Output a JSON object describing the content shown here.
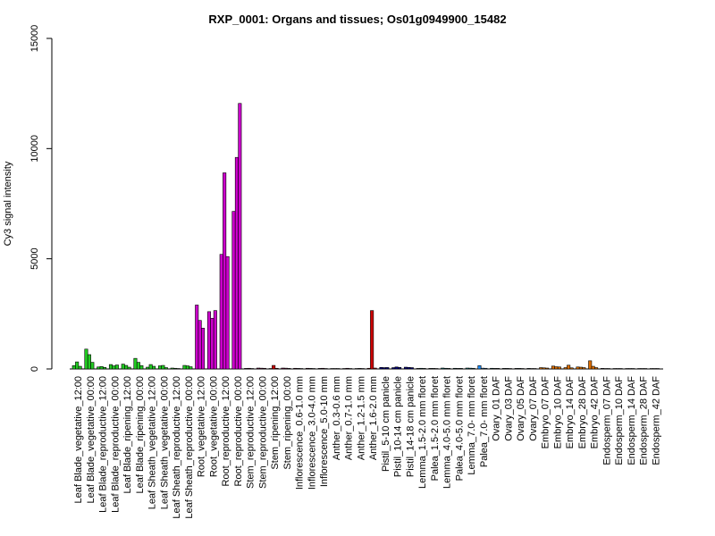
{
  "chart_data": {
    "type": "bar",
    "title": "RXP_0001: Organs and tissues; Os01g0949900_15482",
    "xlabel": "",
    "ylabel": "Cy3 signal intensity",
    "ylim": [
      0,
      15000
    ],
    "yticks": [
      0,
      5000,
      10000,
      15000
    ],
    "grid": false,
    "bar_border_color": "#000000",
    "groups": [
      {
        "label": "Leaf Blade_vegetative_12:00",
        "color": "#22cc22",
        "values": [
          150,
          320,
          120
        ]
      },
      {
        "label": "Leaf Blade_vegetative_00:00",
        "color": "#22cc22",
        "values": [
          900,
          650,
          300
        ]
      },
      {
        "label": "Leaf Blade_reproductive_12:00",
        "color": "#22cc22",
        "values": [
          90,
          110,
          70
        ]
      },
      {
        "label": "Leaf Blade_reproductive_00:00",
        "color": "#22cc22",
        "values": [
          200,
          140,
          180
        ]
      },
      {
        "label": "Leaf Blade_ripening_12:00",
        "color": "#22cc22",
        "values": [
          220,
          160,
          80
        ]
      },
      {
        "label": "Leaf Blade_ripening_00:00",
        "color": "#22cc22",
        "values": [
          480,
          300,
          150
        ]
      },
      {
        "label": "Leaf Sheath_vegetative_12:00",
        "color": "#22cc22",
        "values": [
          80,
          200,
          120
        ]
      },
      {
        "label": "Leaf Sheath_vegetative_00:00",
        "color": "#22cc22",
        "values": [
          140,
          160,
          60
        ]
      },
      {
        "label": "Leaf Sheath_reproductive_12:00",
        "color": "#22cc22",
        "values": [
          40,
          30,
          20
        ]
      },
      {
        "label": "Leaf Sheath_reproductive_00:00",
        "color": "#22cc22",
        "values": [
          160,
          140,
          100
        ]
      },
      {
        "label": "Root_vegetative_12:00",
        "color": "#cc00cc",
        "values": [
          2900,
          2200,
          1850
        ]
      },
      {
        "label": "Root_vegetative_00:00",
        "color": "#cc00cc",
        "values": [
          2600,
          2300,
          2650
        ]
      },
      {
        "label": "Root_reproductive_12:00",
        "color": "#cc00cc",
        "values": [
          5200,
          8900,
          5100
        ]
      },
      {
        "label": "Root_reproductive_00:00",
        "color": "#cc00cc",
        "values": [
          7150,
          9600,
          12050
        ]
      },
      {
        "label": "Stem_reproductive_12:00",
        "color": "#800040",
        "values": [
          25,
          30,
          20
        ]
      },
      {
        "label": "Stem_reproductive_00:00",
        "color": "#800040",
        "values": [
          40,
          35,
          30
        ]
      },
      {
        "label": "Stem_ripening_12:00",
        "color": "#cc0000",
        "values": [
          20,
          160,
          30
        ]
      },
      {
        "label": "Stem_ripening_00:00",
        "color": "#800040",
        "values": [
          40,
          35,
          25
        ]
      },
      {
        "label": "Inflorescence_0.6-1.0 mm",
        "color": "#800040",
        "values": [
          30,
          25,
          20
        ]
      },
      {
        "label": "Inflorescence_3.0-4.0 mm",
        "color": "#800040",
        "values": [
          30,
          25,
          20
        ]
      },
      {
        "label": "Inflorescence_5.0-10 mm",
        "color": "#800040",
        "values": [
          25,
          30,
          20
        ]
      },
      {
        "label": "Anther_0.3-0.6 mm",
        "color": "#800040",
        "values": [
          20,
          20,
          20
        ]
      },
      {
        "label": "Anther_0.7-1.0 mm",
        "color": "#800040",
        "values": [
          20,
          30,
          20
        ]
      },
      {
        "label": "Anther_1.2-1.5 mm",
        "color": "#800040",
        "values": [
          20,
          25,
          20
        ]
      },
      {
        "label": "Anther_1.6-2.0 mm",
        "color": "#cc0000",
        "values": [
          30,
          2650,
          40
        ]
      },
      {
        "label": "Pistil_5-10 cm panicle",
        "color": "#000080",
        "values": [
          70,
          60,
          65
        ]
      },
      {
        "label": "Pistil_10-14 cm panicle",
        "color": "#000080",
        "values": [
          60,
          90,
          70
        ]
      },
      {
        "label": "Pistil_14-18 cm panicle",
        "color": "#000080",
        "values": [
          80,
          70,
          60
        ]
      },
      {
        "label": "Lemma_1.5-2.0 mm floret",
        "color": "#008080",
        "values": [
          25,
          30,
          25
        ]
      },
      {
        "label": "Palea_1.5-2.0 mm floret",
        "color": "#008080",
        "values": [
          25,
          25,
          20
        ]
      },
      {
        "label": "Lemma_4.0-5.0 mm floret",
        "color": "#008080",
        "values": [
          40,
          30,
          25
        ]
      },
      {
        "label": "Palea_4.0-5.0 mm floret",
        "color": "#008080",
        "values": [
          30,
          25,
          25
        ]
      },
      {
        "label": "Lemma_7.0- mm floret",
        "color": "#008080",
        "values": [
          40,
          35,
          30
        ]
      },
      {
        "label": "Palea_7.0- mm floret",
        "color": "#1e90ff",
        "values": [
          150,
          35,
          30
        ]
      },
      {
        "label": "Ovary_01 DAF",
        "color": "#008080",
        "values": [
          30,
          25,
          25
        ]
      },
      {
        "label": "Ovary_03 DAF",
        "color": "#008080",
        "values": [
          25,
          25,
          20
        ]
      },
      {
        "label": "Ovary_05 DAF",
        "color": "#008080",
        "values": [
          25,
          25,
          20
        ]
      },
      {
        "label": "Ovary_07 DAF",
        "color": "#008080",
        "values": [
          25,
          20,
          20
        ]
      },
      {
        "label": "Embryo_07 DAF",
        "color": "#e07000",
        "values": [
          60,
          50,
          40
        ]
      },
      {
        "label": "Embryo_10 DAF",
        "color": "#e07000",
        "values": [
          130,
          100,
          90
        ]
      },
      {
        "label": "Embryo_14 DAF",
        "color": "#e07000",
        "values": [
          60,
          170,
          50
        ]
      },
      {
        "label": "Embryo_28 DAF",
        "color": "#e07000",
        "values": [
          90,
          80,
          60
        ]
      },
      {
        "label": "Embryo_42 DAF",
        "color": "#e07000",
        "values": [
          370,
          120,
          60
        ]
      },
      {
        "label": "Endosperm_07 DAF",
        "color": "#800040",
        "values": [
          25,
          20,
          20
        ]
      },
      {
        "label": "Endosperm_10 DAF",
        "color": "#800040",
        "values": [
          20,
          20,
          20
        ]
      },
      {
        "label": "Endosperm_14 DAF",
        "color": "#800040",
        "values": [
          20,
          20,
          20
        ]
      },
      {
        "label": "Endosperm_28 DAF",
        "color": "#800040",
        "values": [
          20,
          20,
          20
        ]
      },
      {
        "label": "Endosperm_42 DAF",
        "color": "#800040",
        "values": [
          20,
          20,
          20
        ]
      }
    ]
  }
}
